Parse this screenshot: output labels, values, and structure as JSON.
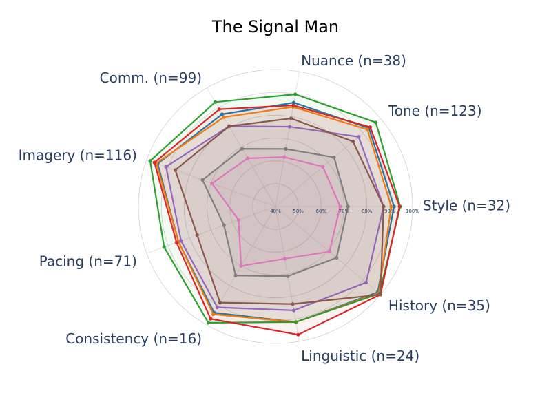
{
  "chart_data": {
    "type": "radar",
    "title": "The Signal Man",
    "categories": [
      "Style (n=32)",
      "Tone (n=123)",
      "Nuance (n=38)",
      "Comm. (n=99)",
      "Imagery (n=116)",
      "Pacing (n=71)",
      "Consistency (n=16)",
      "Linguistic (n=24)",
      "History (n=35)"
    ],
    "rlim": [
      40,
      100
    ],
    "rticks": [
      {
        "value": 40,
        "label": "40%"
      },
      {
        "value": 50,
        "label": "50%"
      },
      {
        "value": 60,
        "label": "60%"
      },
      {
        "value": 70,
        "label": "70%"
      },
      {
        "value": 80,
        "label": "80%"
      },
      {
        "value": 90,
        "label": "90%"
      },
      {
        "value": 100,
        "label": "100%"
      }
    ],
    "grid": true,
    "series": [
      {
        "color": "#1f77b4",
        "values": [
          91.9,
          93.4,
          86.2,
          86.7,
          94.9,
          85.2,
          93.7,
          91.4,
          98.4
        ]
      },
      {
        "color": "#ff7f0e",
        "values": [
          90.7,
          92.5,
          84.3,
          85.2,
          95.5,
          85.2,
          94.5,
          91.4,
          99
        ]
      },
      {
        "color": "#2ca02c",
        "values": [
          94.6,
          97.3,
          89.9,
          92.8,
          98.4,
          91.9,
          98.8,
          91.4,
          99.4
        ]
      },
      {
        "color": "#d62728",
        "values": [
          94.3,
          94.1,
          85,
          89.2,
          96.4,
          86.1,
          96.8,
          97,
          100
        ]
      },
      {
        "color": "#9467bd",
        "values": [
          87.3,
          87.5,
          75.5,
          80.6,
          91,
          84,
          91,
          86.2,
          91.8
        ]
      },
      {
        "color": "#8c564b",
        "values": [
          87.3,
          84.3,
          79.2,
          80.6,
          86.7,
          76.5,
          88.6,
          83.4,
          100
        ]
      },
      {
        "color": "#e377c2",
        "values": [
          68.3,
          67.1,
          62,
          64.4,
          69.6,
          57.2,
          70.1,
          63.2,
          70.8
        ]
      },
      {
        "color": "#7f7f7f",
        "values": [
          71.7,
          73.5,
          65.6,
          69.2,
          74,
          64,
          74.9,
          71,
          74.9
        ]
      }
    ]
  }
}
